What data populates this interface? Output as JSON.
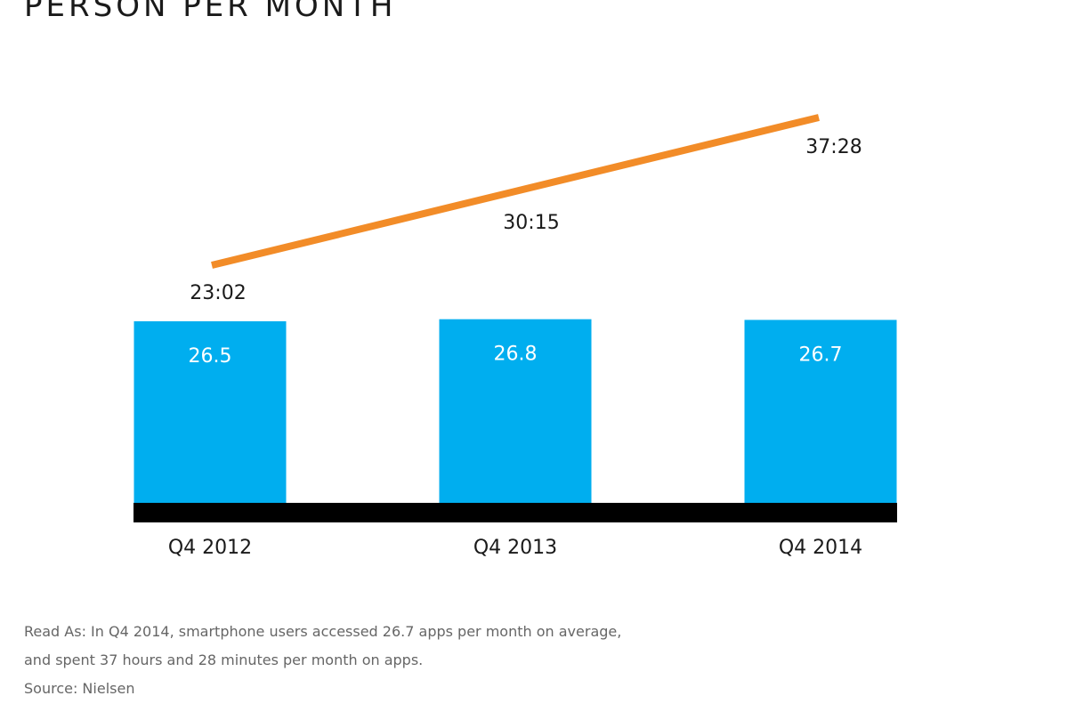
{
  "page": {
    "title": "PERSON PER MONTH"
  },
  "chart_data": {
    "type": "bar",
    "categories": [
      "Q4 2012",
      "Q4 2013",
      "Q4 2014"
    ],
    "series": [
      {
        "type": "bar",
        "values": [
          26.5,
          26.8,
          26.7
        ],
        "value_labels": [
          "26.5",
          "26.8",
          "26.7"
        ],
        "color": "#00AEEF"
      },
      {
        "type": "line",
        "values": [
          23.03,
          30.25,
          37.47
        ],
        "value_labels": [
          "23:02",
          "30:15",
          "37:28"
        ],
        "color": "#F28C28"
      }
    ],
    "baseline_color": "#000000",
    "grid": false,
    "legend": "none"
  },
  "footnote": {
    "line1": "Read As: In Q4 2014, smartphone users accessed 26.7 apps per month on average,",
    "line2": "and spent 37 hours and 28 minutes per month on apps.",
    "source": "Source: Nielsen"
  }
}
